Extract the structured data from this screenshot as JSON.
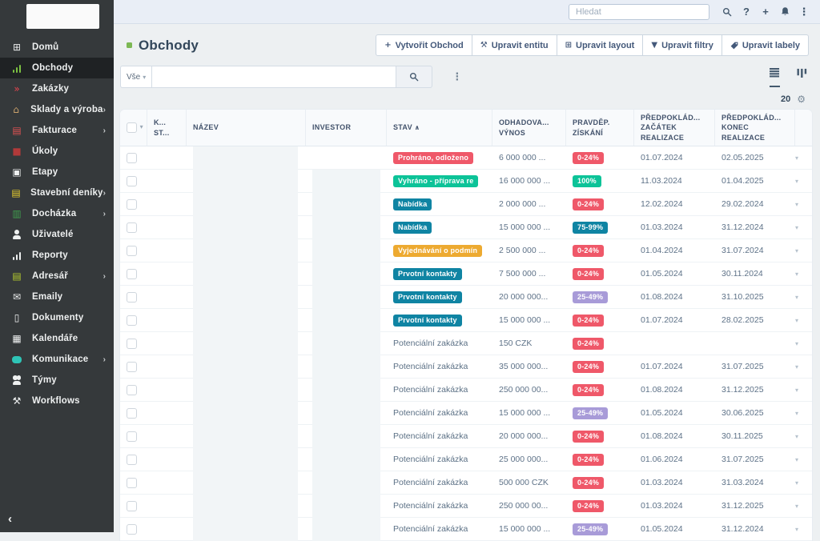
{
  "colors": {
    "red": "#ef5869",
    "green": "#0cc398",
    "teal": "#0f84a3",
    "orange": "#edaa31",
    "purple": "#a89bd8",
    "accent_green": "#7cb854"
  },
  "topbar": {
    "search_placeholder": "Hledat",
    "icons": [
      {
        "name": "search",
        "glyph": "svg-search"
      },
      {
        "name": "help",
        "glyph": "?"
      },
      {
        "name": "plus",
        "glyph": "+"
      },
      {
        "name": "bell",
        "glyph": "svg-bell"
      },
      {
        "name": "kebab",
        "glyph": "⋮"
      }
    ]
  },
  "sidebar": {
    "collapse_icon": "‹",
    "items": [
      {
        "id": "domu",
        "label": "Domů",
        "icon": "grid",
        "color": "#e8eaea",
        "expandable": false,
        "active": false
      },
      {
        "id": "obchody",
        "label": "Obchody",
        "icon": "chart",
        "color": "#7cc142",
        "expandable": false,
        "active": true
      },
      {
        "id": "zakazky",
        "label": "Zakázky",
        "icon": "double-chevron",
        "color": "#e84550",
        "expandable": false,
        "active": false
      },
      {
        "id": "sklady-a-vyroba",
        "label": "Sklady a výroba",
        "icon": "warehouse",
        "color": "#c8a06b",
        "expandable": true,
        "active": false
      },
      {
        "id": "fakturace",
        "label": "Fakturace",
        "icon": "invoice",
        "color": "#e05252",
        "expandable": true,
        "active": false
      },
      {
        "id": "ukoly",
        "label": "Úkoly",
        "icon": "square",
        "color": "#b23a3a",
        "expandable": false,
        "active": false
      },
      {
        "id": "etapy",
        "label": "Etapy",
        "icon": "clipboard",
        "color": "#eef0f0",
        "expandable": false,
        "active": false
      },
      {
        "id": "stavebni-deniky",
        "label": "Stavební deníky",
        "icon": "book",
        "color": "#e6cc2e",
        "expandable": true,
        "active": false
      },
      {
        "id": "dochazka",
        "label": "Docházka",
        "icon": "attendance",
        "color": "#3f9e4d",
        "expandable": true,
        "active": false
      },
      {
        "id": "uzivatele",
        "label": "Uživatelé",
        "icon": "person",
        "color": "#eef0f0",
        "expandable": false,
        "active": false
      },
      {
        "id": "reporty",
        "label": "Reporty",
        "icon": "report",
        "color": "#eef0f0",
        "expandable": false,
        "active": false
      },
      {
        "id": "adresar",
        "label": "Adresář",
        "icon": "idcard",
        "color": "#b5cc2e",
        "expandable": true,
        "active": false
      },
      {
        "id": "emaily",
        "label": "Emaily",
        "icon": "envelope",
        "color": "#eef0f0",
        "expandable": false,
        "active": false
      },
      {
        "id": "dokumenty",
        "label": "Dokumenty",
        "icon": "document",
        "color": "#eef0f0",
        "expandable": false,
        "active": false
      },
      {
        "id": "kalendare",
        "label": "Kalendáře",
        "icon": "calendar",
        "color": "#eef0f0",
        "expandable": false,
        "active": false
      },
      {
        "id": "komunikace",
        "label": "Komunikace",
        "icon": "chat",
        "color": "#2ec4b6",
        "expandable": true,
        "active": false
      },
      {
        "id": "tymy",
        "label": "Týmy",
        "icon": "people",
        "color": "#eef0f0",
        "expandable": false,
        "active": false
      },
      {
        "id": "workflows",
        "label": "Workflows",
        "icon": "wrench",
        "color": "#eef0f0",
        "expandable": false,
        "active": false
      }
    ]
  },
  "page": {
    "title": "Obchody"
  },
  "actions": [
    {
      "id": "vytvorit-obchod",
      "icon": "plus",
      "label": "Vytvořit Obchod"
    },
    {
      "id": "upravit-entitu",
      "icon": "tools",
      "label": "Upravit entitu"
    },
    {
      "id": "upravit-layout",
      "icon": "layout",
      "label": "Upravit layout"
    },
    {
      "id": "upravit-filtry",
      "icon": "funnel",
      "label": "Upravit filtry"
    },
    {
      "id": "upravit-labely",
      "icon": "tag",
      "label": "Upravit labely"
    }
  ],
  "filterbar": {
    "scope_label": "Vše",
    "search_value": "",
    "page_size": "20"
  },
  "table": {
    "columns": [
      {
        "id": "select",
        "lines": []
      },
      {
        "id": "key-status",
        "lines": [
          "K...",
          "ST..."
        ]
      },
      {
        "id": "nazev",
        "lines": [
          "NÁZEV"
        ]
      },
      {
        "id": "investor",
        "lines": [
          "INVESTOR"
        ]
      },
      {
        "id": "stav",
        "lines": [
          "STAV"
        ],
        "sorted": "asc"
      },
      {
        "id": "odhadovany-vynos",
        "lines": [
          "ODHADOVA...",
          "VÝNOS"
        ]
      },
      {
        "id": "pravdep-ziskani",
        "lines": [
          "PRAVDĚP.",
          "ZÍSKÁNÍ"
        ]
      },
      {
        "id": "predpokladany-zacatek",
        "lines": [
          "PŘEDPOKLÁD...",
          "ZAČÁTEK",
          "REALIZACE"
        ]
      },
      {
        "id": "predpokladany-konec",
        "lines": [
          "PŘEDPOKLÁD...",
          "KONEC",
          "REALIZACE"
        ]
      },
      {
        "id": "row-menu",
        "lines": []
      }
    ],
    "sort_icon": "∧",
    "rows": [
      {
        "status": "Prohráno, odloženo",
        "status_color": "red",
        "revenue": "6 000 000 ...",
        "probability": "0-24%",
        "probability_color": "red",
        "start": "01.07.2024",
        "end": "02.05.2025"
      },
      {
        "status": "Vyhráno - příprava re",
        "status_color": "green",
        "revenue": "16 000 000 ...",
        "probability": "100%",
        "probability_color": "green",
        "start": "11.03.2024",
        "end": "01.04.2025"
      },
      {
        "status": "Nabídka",
        "status_color": "teal",
        "revenue": "2 000 000 ...",
        "probability": "0-24%",
        "probability_color": "red",
        "start": "12.02.2024",
        "end": "29.02.2024"
      },
      {
        "status": "Nabídka",
        "status_color": "teal",
        "revenue": "15 000 000 ...",
        "probability": "75-99%",
        "probability_color": "teal",
        "start": "01.03.2024",
        "end": "31.12.2024"
      },
      {
        "status": "Vyjednávání o podmín",
        "status_color": "orange",
        "revenue": "2 500 000 ...",
        "probability": "0-24%",
        "probability_color": "red",
        "start": "01.04.2024",
        "end": "31.07.2024"
      },
      {
        "status": "Prvotní kontakty",
        "status_color": "teal",
        "revenue": "7 500 000 ...",
        "probability": "0-24%",
        "probability_color": "red",
        "start": "01.05.2024",
        "end": "30.11.2024"
      },
      {
        "status": "Prvotní kontakty",
        "status_color": "teal",
        "revenue": "20 000 000...",
        "probability": "25-49%",
        "probability_color": "purple",
        "start": "01.08.2024",
        "end": "31.10.2025"
      },
      {
        "status": "Prvotní kontakty",
        "status_color": "teal",
        "revenue": "15 000 000 ...",
        "probability": "0-24%",
        "probability_color": "red",
        "start": "01.07.2024",
        "end": "28.02.2025"
      },
      {
        "status": "Potenciální zakázka",
        "status_color": "none",
        "revenue": "150 CZK",
        "probability": "0-24%",
        "probability_color": "red",
        "start": "",
        "end": ""
      },
      {
        "status": "Potenciální zakázka",
        "status_color": "none",
        "revenue": "35 000 000...",
        "probability": "0-24%",
        "probability_color": "red",
        "start": "01.07.2024",
        "end": "31.07.2025"
      },
      {
        "status": "Potenciální zakázka",
        "status_color": "none",
        "revenue": "250 000 00...",
        "probability": "0-24%",
        "probability_color": "red",
        "start": "01.08.2024",
        "end": "31.12.2025"
      },
      {
        "status": "Potenciální zakázka",
        "status_color": "none",
        "revenue": "15 000 000 ...",
        "probability": "25-49%",
        "probability_color": "purple",
        "start": "01.05.2024",
        "end": "30.06.2025"
      },
      {
        "status": "Potenciální zakázka",
        "status_color": "none",
        "revenue": "20 000 000...",
        "probability": "0-24%",
        "probability_color": "red",
        "start": "01.08.2024",
        "end": "30.11.2025"
      },
      {
        "status": "Potenciální zakázka",
        "status_color": "none",
        "revenue": "25 000 000...",
        "probability": "0-24%",
        "probability_color": "red",
        "start": "01.06.2024",
        "end": "31.07.2025"
      },
      {
        "status": "Potenciální zakázka",
        "status_color": "none",
        "revenue": "500 000 CZK",
        "probability": "0-24%",
        "probability_color": "red",
        "start": "01.03.2024",
        "end": "31.03.2024"
      },
      {
        "status": "Potenciální zakázka",
        "status_color": "none",
        "revenue": "250 000 00...",
        "probability": "0-24%",
        "probability_color": "red",
        "start": "01.03.2024",
        "end": "31.12.2025"
      },
      {
        "status": "Potenciální zakázka",
        "status_color": "none",
        "revenue": "15 000 000 ...",
        "probability": "25-49%",
        "probability_color": "purple",
        "start": "01.05.2024",
        "end": "31.12.2024"
      }
    ]
  }
}
